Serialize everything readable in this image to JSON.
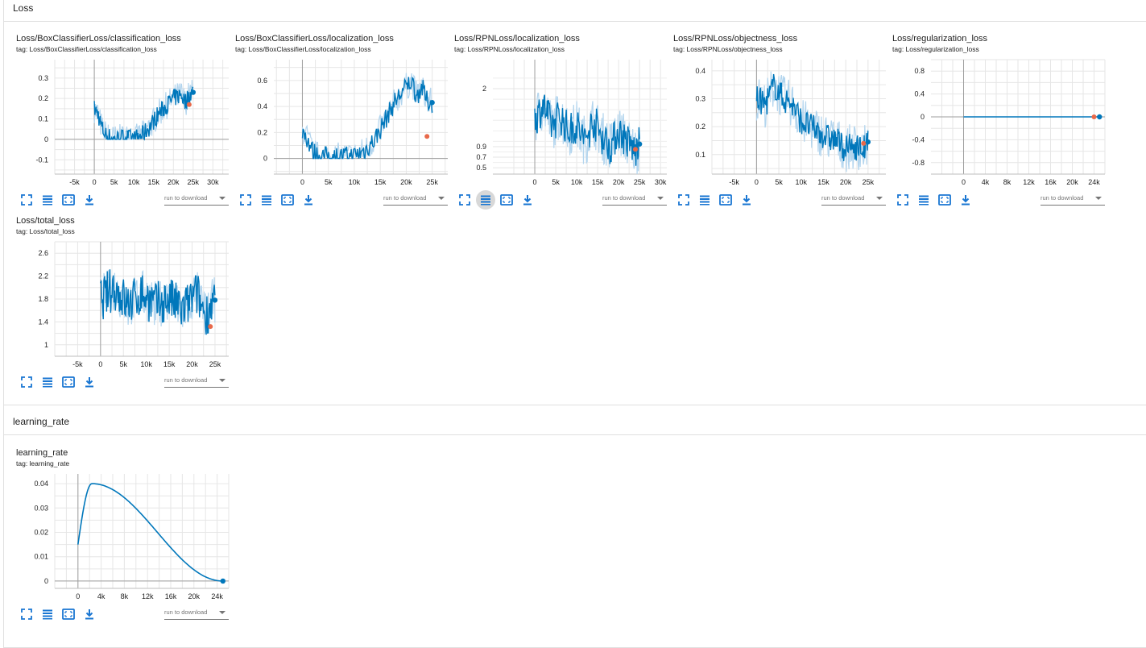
{
  "colors": {
    "line": "#0077bb",
    "raw": "#b3d5ee",
    "accent": "#1976d2",
    "marker": "#e8694a"
  },
  "sections": [
    {
      "title": "Loss"
    },
    {
      "title": "learning_rate"
    }
  ],
  "toolbar": {
    "icons": [
      "fullscreen-icon",
      "list-icon",
      "fit-domain-icon",
      "download-icon"
    ],
    "download_placeholder": "run to download"
  },
  "cards": [
    {
      "title": "Loss/BoxClassifierLoss/classification_loss",
      "tag": "tag: Loss/BoxClassifierLoss/classification_loss"
    },
    {
      "title": "Loss/BoxClassifierLoss/localization_loss",
      "tag": "tag: Loss/BoxClassifierLoss/localization_loss"
    },
    {
      "title": "Loss/RPNLoss/localization_loss",
      "tag": "tag: Loss/RPNLoss/localization_loss"
    },
    {
      "title": "Loss/RPNLoss/objectness_loss",
      "tag": "tag: Loss/RPNLoss/objectness_loss"
    },
    {
      "title": "Loss/regularization_loss",
      "tag": "tag: Loss/regularization_loss"
    },
    {
      "title": "Loss/total_loss",
      "tag": "tag: Loss/total_loss"
    },
    {
      "title": "learning_rate",
      "tag": "tag: learning_rate"
    }
  ],
  "chart_data": [
    {
      "type": "line",
      "xlim": [
        -10000,
        34000
      ],
      "ylim": [
        -0.17,
        0.39
      ],
      "xticks": [
        -5000,
        0,
        5000,
        10000,
        15000,
        20000,
        25000,
        30000
      ],
      "xtick_labels": [
        "-5k",
        "0",
        "5k",
        "10k",
        "15k",
        "20k",
        "25k",
        "30k"
      ],
      "yticks": [
        -0.1,
        0,
        0.1,
        0.2,
        0.3
      ],
      "ytick_labels": [
        "-0.1",
        "0",
        "0.1",
        "0.2",
        "0.3"
      ],
      "anchors": [
        [
          0,
          0.15
        ],
        [
          1000,
          0.12
        ],
        [
          2000,
          0.05
        ],
        [
          3000,
          0.02
        ],
        [
          5000,
          0.0
        ],
        [
          8000,
          0.01
        ],
        [
          10000,
          0.0
        ],
        [
          12000,
          0.02
        ],
        [
          14000,
          0.06
        ],
        [
          16000,
          0.12
        ],
        [
          18000,
          0.16
        ],
        [
          20000,
          0.2
        ],
        [
          22000,
          0.22
        ],
        [
          23000,
          0.18
        ],
        [
          24000,
          0.22
        ],
        [
          25000,
          0.23
        ]
      ],
      "noise": 0.045,
      "floor": 0.0,
      "ceil": 0.39,
      "raw_spread": 0.05,
      "last_point": [
        25000,
        0.23
      ],
      "marker_point": [
        24000,
        0.17
      ],
      "grid": true
    },
    {
      "type": "line",
      "xlim": [
        -5500,
        28000
      ],
      "ylim": [
        -0.12,
        0.76
      ],
      "xticks": [
        0,
        5000,
        10000,
        15000,
        20000,
        25000
      ],
      "xtick_labels": [
        "0",
        "5k",
        "10k",
        "15k",
        "20k",
        "25k"
      ],
      "yticks": [
        0,
        0.2,
        0.4,
        0.6
      ],
      "ytick_labels": [
        "0",
        "0.2",
        "0.4",
        "0.6"
      ],
      "anchors": [
        [
          0,
          0.22
        ],
        [
          1000,
          0.15
        ],
        [
          2000,
          0.05
        ],
        [
          3000,
          0.02
        ],
        [
          6000,
          0.01
        ],
        [
          10000,
          0.02
        ],
        [
          12000,
          0.06
        ],
        [
          14000,
          0.15
        ],
        [
          16000,
          0.3
        ],
        [
          18000,
          0.45
        ],
        [
          20000,
          0.55
        ],
        [
          21000,
          0.6
        ],
        [
          22000,
          0.48
        ],
        [
          23000,
          0.55
        ],
        [
          24000,
          0.44
        ],
        [
          25000,
          0.43
        ]
      ],
      "noise": 0.08,
      "floor": 0.0,
      "ceil": 0.76,
      "raw_spread": 0.08,
      "last_point": [
        25000,
        0.43
      ],
      "marker_point": [
        24000,
        0.17
      ],
      "grid": true
    },
    {
      "type": "line",
      "xlim": [
        -10000,
        31500
      ],
      "ylim": [
        0.38,
        2.55
      ],
      "xticks": [
        0,
        5000,
        10000,
        15000,
        20000,
        25000,
        30000
      ],
      "xtick_labels": [
        "0",
        "5k",
        "10k",
        "15k",
        "20k",
        "25k",
        "30k"
      ],
      "yticks": [
        0.5,
        0.7,
        0.9,
        2
      ],
      "ytick_labels": [
        "0.5",
        "0.7",
        "0.9",
        "2"
      ],
      "anchors": [
        [
          0,
          1.4
        ],
        [
          2000,
          1.7
        ],
        [
          4000,
          1.3
        ],
        [
          6000,
          1.5
        ],
        [
          8000,
          1.2
        ],
        [
          10000,
          1.3
        ],
        [
          12000,
          1.0
        ],
        [
          14000,
          1.4
        ],
        [
          16000,
          1.1
        ],
        [
          18000,
          0.9
        ],
        [
          20000,
          1.2
        ],
        [
          22000,
          1.0
        ],
        [
          24000,
          0.8
        ],
        [
          25000,
          0.95
        ]
      ],
      "noise": 0.35,
      "floor": 0.38,
      "ceil": 2.55,
      "raw_spread": 0.35,
      "last_point": [
        25000,
        0.95
      ],
      "marker_point": [
        24000,
        0.85
      ],
      "grid": true
    },
    {
      "type": "line",
      "xlim": [
        -10000,
        29000
      ],
      "ylim": [
        0.03,
        0.44
      ],
      "xticks": [
        -5000,
        0,
        5000,
        10000,
        15000,
        20000,
        25000
      ],
      "xtick_labels": [
        "-5k",
        "0",
        "5k",
        "10k",
        "15k",
        "20k",
        "25k"
      ],
      "yticks": [
        0.1,
        0.2,
        0.3,
        0.4
      ],
      "ytick_labels": [
        "0.1",
        "0.2",
        "0.3",
        "0.4"
      ],
      "anchors": [
        [
          0,
          0.3
        ],
        [
          2000,
          0.28
        ],
        [
          4000,
          0.35
        ],
        [
          6000,
          0.3
        ],
        [
          8000,
          0.28
        ],
        [
          10000,
          0.22
        ],
        [
          12000,
          0.2
        ],
        [
          14000,
          0.18
        ],
        [
          16000,
          0.16
        ],
        [
          18000,
          0.15
        ],
        [
          20000,
          0.12
        ],
        [
          22000,
          0.13
        ],
        [
          24000,
          0.12
        ],
        [
          25000,
          0.14
        ]
      ],
      "noise": 0.05,
      "floor": 0.03,
      "ceil": 0.44,
      "raw_spread": 0.06,
      "last_point": [
        25000,
        0.145
      ],
      "marker_point": [
        24000,
        0.14
      ],
      "grid": true
    },
    {
      "type": "line",
      "xlim": [
        -6000,
        26000
      ],
      "ylim": [
        -1.0,
        1.0
      ],
      "xticks": [
        0,
        4000,
        8000,
        12000,
        16000,
        20000,
        24000
      ],
      "xtick_labels": [
        "0",
        "4k",
        "8k",
        "12k",
        "16k",
        "20k",
        "24k"
      ],
      "yticks": [
        -0.8,
        -0.4,
        0,
        0.4,
        0.8
      ],
      "ytick_labels": [
        "-0.8",
        "-0.4",
        "0",
        "0.4",
        "0.8"
      ],
      "anchors": [
        [
          0,
          0
        ],
        [
          25000,
          0
        ]
      ],
      "noise": 0,
      "floor": -1.0,
      "ceil": 1.0,
      "raw_spread": 0,
      "last_point": [
        25000,
        0
      ],
      "marker_point": [
        24000,
        0
      ],
      "grid": true
    },
    {
      "type": "line",
      "xlim": [
        -10000,
        28000
      ],
      "ylim": [
        0.8,
        2.8
      ],
      "xticks": [
        -5000,
        0,
        5000,
        10000,
        15000,
        20000,
        25000
      ],
      "xtick_labels": [
        "-5k",
        "0",
        "5k",
        "10k",
        "15k",
        "20k",
        "25k"
      ],
      "yticks": [
        1,
        1.4,
        1.8,
        2.2,
        2.6
      ],
      "ytick_labels": [
        "1",
        "1.4",
        "1.8",
        "2.2",
        "2.6"
      ],
      "anchors": [
        [
          0,
          1.8
        ],
        [
          3000,
          2.0
        ],
        [
          6000,
          1.7
        ],
        [
          9000,
          1.9
        ],
        [
          12000,
          1.7
        ],
        [
          15000,
          1.8
        ],
        [
          18000,
          1.6
        ],
        [
          21000,
          1.9
        ],
        [
          23000,
          1.5
        ],
        [
          24000,
          1.7
        ],
        [
          25000,
          1.78
        ]
      ],
      "noise": 0.4,
      "floor": 0.8,
      "ceil": 2.8,
      "raw_spread": 0.3,
      "last_point": [
        25000,
        1.78
      ],
      "marker_point": [
        24000,
        1.32
      ],
      "grid": true
    },
    {
      "type": "line",
      "xlim": [
        -4000,
        26000
      ],
      "ylim": [
        -0.003,
        0.044
      ],
      "xticks": [
        0,
        4000,
        8000,
        12000,
        16000,
        20000,
        24000
      ],
      "xtick_labels": [
        "0",
        "4k",
        "8k",
        "12k",
        "16k",
        "20k",
        "24k"
      ],
      "yticks": [
        0,
        0.01,
        0.02,
        0.03,
        0.04
      ],
      "ytick_labels": [
        "0",
        "0.01",
        "0.02",
        "0.03",
        "0.04"
      ],
      "curve": "lr",
      "peak_x": 2400,
      "peak_y": 0.04,
      "start_y": 0.015,
      "end_x": 25000,
      "last_point": [
        25000,
        0.0
      ],
      "grid": true
    }
  ]
}
